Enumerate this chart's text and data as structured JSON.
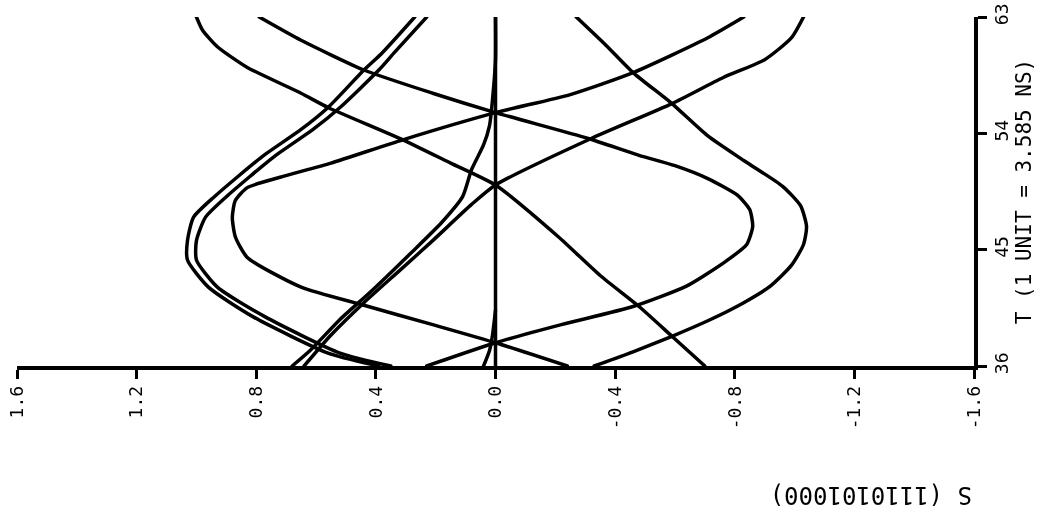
{
  "chart_data": {
    "type": "line",
    "xlabel": "S (1110101000)",
    "ylabel": "T (1 UNIT = 3.585 NS)",
    "xlim": [
      1.6,
      -1.6
    ],
    "ylim": [
      36,
      63
    ],
    "xticks": [
      1.6,
      1.2,
      0.8,
      0.4,
      {
        "value": 0,
        "label": "0.0"
      },
      -0.4,
      -0.8,
      -1.2,
      -1.6
    ],
    "yticks": [
      36,
      45,
      54,
      63
    ],
    "line_style": "solid",
    "ref_lines": [
      {
        "axis": "x",
        "value": 0,
        "color": "#000000",
        "line_style": "solid"
      }
    ],
    "series": [
      {
        "color": "#000000",
        "x": [
          1.0,
          0.98,
          0.93,
          0.83,
          0.65,
          0.56,
          0.31,
          0.15,
          0.0,
          -0.21,
          -0.35,
          -0.48,
          -0.59,
          -0.7
        ],
        "values": [
          63.0,
          62.0,
          60.7,
          59.1,
          57.1,
          56.0,
          53.5,
          51.7,
          50.0,
          46.0,
          43.0,
          40.6,
          38.3,
          36.0
        ]
      },
      {
        "color": "#000000",
        "x": [
          0.27,
          0.38,
          0.44,
          0.56,
          0.65,
          0.78,
          0.94,
          1.01,
          1.03,
          1.03,
          0.96,
          0.81,
          0.56,
          0.39
        ],
        "values": [
          63.0,
          60.2,
          58.9,
          56.0,
          54.3,
          52.2,
          49.1,
          47.5,
          45.7,
          44.2,
          42.1,
          39.8,
          37.0,
          36.0
        ]
      },
      {
        "color": "#000000",
        "x": [
          0.23,
          0.34,
          0.39,
          0.52,
          0.61,
          0.74,
          0.9,
          0.97,
          1.0,
          1.0,
          0.93,
          0.77,
          0.52,
          0.35
        ],
        "values": [
          63.0,
          60.2,
          58.9,
          56.0,
          54.3,
          52.2,
          49.1,
          47.5,
          45.7,
          44.2,
          42.1,
          39.8,
          37.0,
          36.0
        ]
      },
      {
        "color": "#000000",
        "x": [
          0.79,
          0.65,
          0.44,
          0.21,
          0.0,
          -0.31,
          -0.48,
          -0.6,
          -0.71,
          -0.81,
          -0.85,
          -0.86,
          -0.84,
          -0.77,
          -0.64,
          -0.46,
          -0.22,
          0.0,
          0.23
        ],
        "values": [
          63.0,
          61.2,
          58.9,
          57.1,
          55.6,
          53.6,
          52.3,
          51.5,
          50.5,
          49.2,
          48.1,
          46.8,
          45.4,
          44.1,
          42.2,
          40.6,
          39.2,
          37.8,
          36.0
        ]
      },
      {
        "color": "#000000",
        "x": [
          0.04,
          0.02,
          0.01,
          0.0
        ],
        "values": [
          36.0,
          37.2,
          38.4,
          40.3
        ]
      },
      {
        "color": "#000000",
        "x": [
          0.0,
          0.0,
          0.01,
          0.02,
          0.04,
          0.08,
          0.11,
          0.18,
          0.28,
          0.41,
          0.52,
          0.62,
          0.68
        ],
        "values": [
          63.0,
          59.7,
          56.6,
          54.6,
          53.1,
          51.2,
          49.1,
          47.1,
          44.8,
          41.9,
          39.6,
          37.2,
          36.0
        ]
      },
      {
        "color": "#000000",
        "x": [
          -0.83,
          -0.71,
          -0.46,
          -0.25,
          0.0,
          0.31,
          0.55,
          0.72,
          0.83,
          0.87,
          0.88,
          0.87,
          0.83,
          0.65,
          0.44,
          0.21,
          0.0,
          -0.24
        ],
        "values": [
          63.0,
          61.4,
          58.7,
          57.0,
          55.6,
          53.5,
          51.7,
          50.6,
          49.8,
          48.8,
          47.5,
          46.0,
          44.4,
          42.1,
          40.7,
          39.2,
          37.8,
          36.0
        ]
      },
      {
        "color": "#000000",
        "x": [
          -0.27,
          -0.37,
          -0.46,
          -0.59,
          -0.71,
          -0.83,
          -0.96,
          -1.02,
          -1.04,
          -1.03,
          -0.99,
          -0.92,
          -0.83,
          -0.71,
          -0.59,
          -0.46,
          -0.33
        ],
        "values": [
          63.0,
          60.8,
          58.7,
          56.3,
          53.8,
          51.9,
          49.9,
          48.4,
          46.8,
          45.4,
          43.8,
          42.2,
          40.9,
          39.5,
          38.3,
          37.1,
          36.0
        ]
      },
      {
        "color": "#000000",
        "x": [
          -1.03,
          -0.99,
          -0.9,
          -0.76,
          -0.59,
          -0.32,
          0.0,
          0.08,
          0.21,
          0.32,
          0.44,
          0.55,
          0.64
        ],
        "values": [
          63.0,
          61.4,
          59.7,
          58.3,
          56.3,
          53.6,
          50.0,
          48.5,
          45.7,
          43.4,
          40.9,
          38.4,
          36.0
        ]
      }
    ]
  }
}
